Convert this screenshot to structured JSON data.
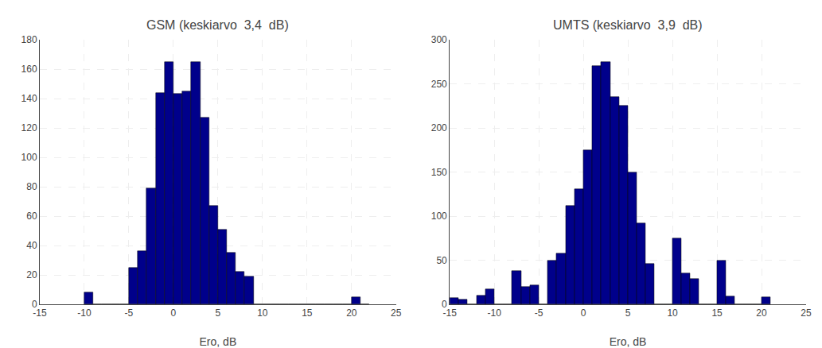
{
  "chart_data": [
    {
      "type": "histogram",
      "title": "GSM (keskiarvo  3,4  dB)",
      "x_label": "Ero, dB",
      "bins": [
        -10,
        -9,
        -8,
        -7,
        -6,
        -5,
        -4,
        -3,
        -2,
        -1,
        0,
        1,
        2,
        3,
        4,
        5,
        6,
        7,
        8,
        9,
        10,
        11,
        12,
        13,
        14,
        15,
        16,
        17,
        18,
        19,
        20,
        21,
        22
      ],
      "values": [
        8,
        0,
        0,
        0,
        0,
        25,
        36,
        79,
        144,
        165,
        143,
        145,
        165,
        127,
        67,
        51,
        35,
        22,
        19,
        0,
        0,
        0,
        0,
        0,
        0,
        0,
        0,
        0,
        0,
        0,
        5,
        0
      ],
      "color": "#00008B",
      "xlim": [
        -15,
        25
      ],
      "xticks": [
        -15,
        -10,
        -5,
        0,
        5,
        10,
        15,
        20,
        25
      ],
      "ylim": [
        0,
        180
      ],
      "yticks": [
        0,
        20,
        40,
        60,
        80,
        100,
        120,
        140,
        160,
        180
      ],
      "grid": true
    },
    {
      "type": "histogram",
      "title": "UMTS (keskiarvo  3,9  dB)",
      "x_label": "Ero, dB",
      "bins": [
        -15,
        -14,
        -13,
        -12,
        -11,
        -10,
        -9,
        -8,
        -7,
        -6,
        -5,
        -4,
        -3,
        -2,
        -1,
        0,
        1,
        2,
        3,
        4,
        5,
        6,
        7,
        8,
        9,
        10,
        11,
        12,
        13,
        14,
        15,
        16,
        17,
        18,
        19,
        20,
        21
      ],
      "values": [
        7,
        5,
        0,
        10,
        17,
        0,
        0,
        38,
        20,
        22,
        0,
        50,
        58,
        112,
        131,
        175,
        270,
        275,
        235,
        225,
        150,
        92,
        46,
        0,
        0,
        75,
        35,
        29,
        0,
        0,
        50,
        9,
        0,
        0,
        0,
        8
      ],
      "color": "#00008B",
      "xlim": [
        -15,
        25
      ],
      "xticks": [
        -15,
        -10,
        -5,
        0,
        5,
        10,
        15,
        20,
        25
      ],
      "ylim": [
        0,
        300
      ],
      "yticks": [
        0,
        50,
        100,
        150,
        200,
        250,
        300
      ],
      "grid": true
    }
  ]
}
